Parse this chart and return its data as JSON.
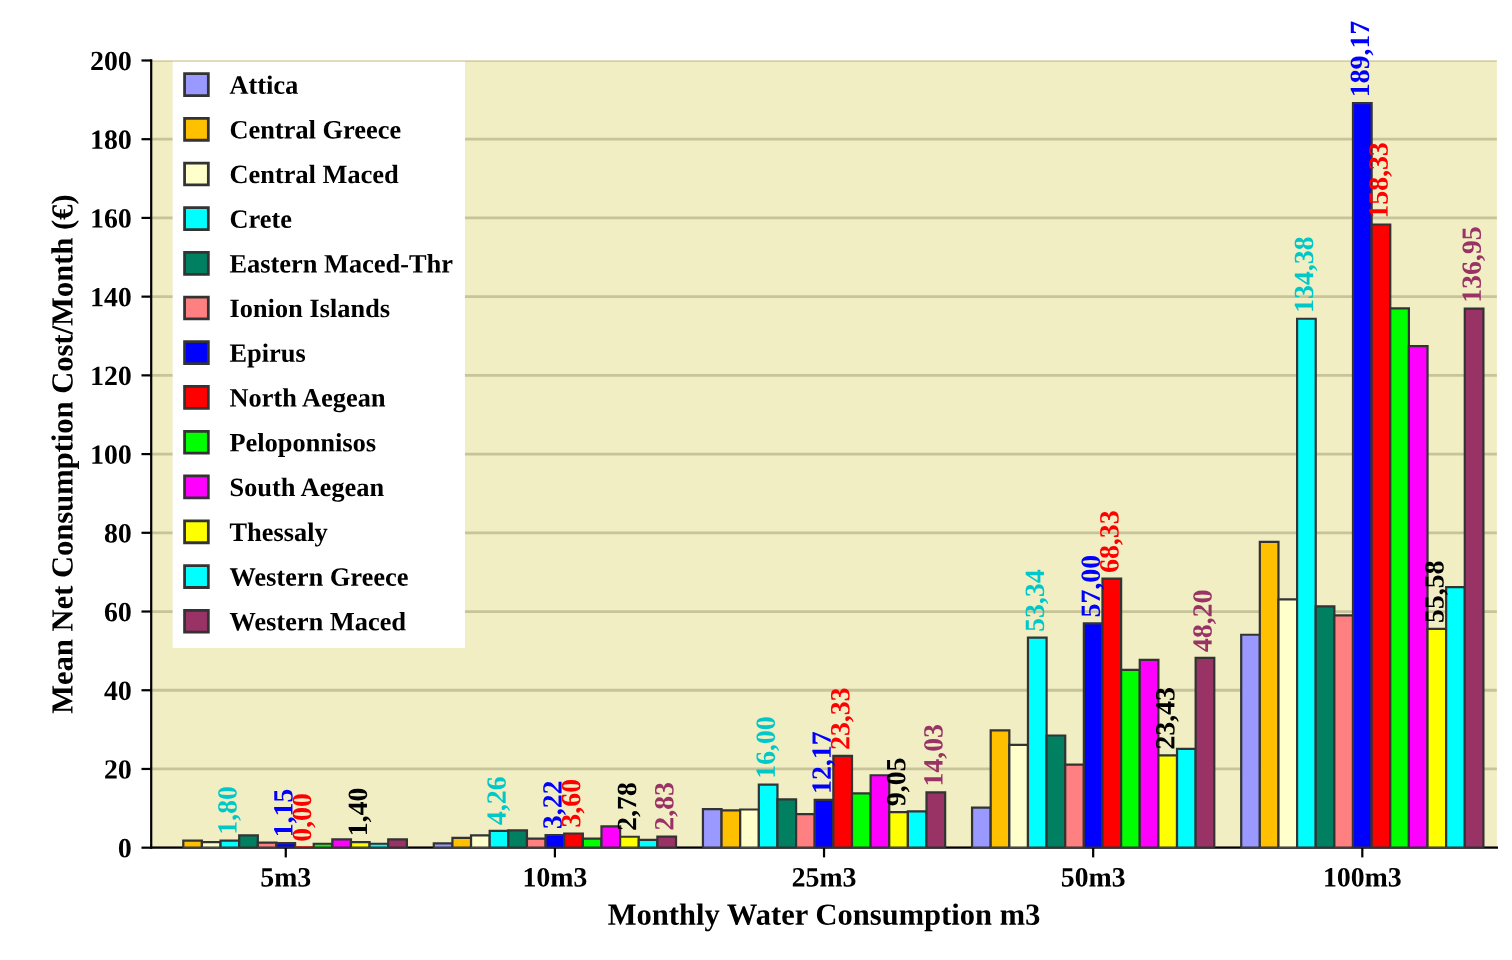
{
  "chart_data": {
    "type": "bar",
    "xlabel": "Monthly Water Consumption m3",
    "ylabel": "Mean Net Consumption Cost/Month (€)",
    "categories": [
      "5m3",
      "10m3",
      "25m3",
      "50m3",
      "100m3"
    ],
    "ylim": [
      0,
      200
    ],
    "yticks": [
      0,
      20,
      40,
      60,
      80,
      100,
      120,
      140,
      160,
      180,
      200
    ],
    "grid": "y",
    "legend": "top left",
    "series": [
      {
        "name": "Attica",
        "color": "#9999ff",
        "values": [
          null,
          1.1,
          9.8,
          10.2,
          54.1
        ]
      },
      {
        "name": "Central Greece",
        "color": "#ffc000",
        "values": [
          1.8,
          2.5,
          9.5,
          29.8,
          77.7
        ]
      },
      {
        "name": "Central Maced",
        "color": "#ffffcc",
        "values": [
          1.4,
          3.1,
          9.7,
          26.1,
          63.1
        ]
      },
      {
        "name": "Crete",
        "color": "#00ffff",
        "values": [
          1.8,
          4.26,
          16.0,
          53.34,
          134.38
        ],
        "value_labels": [
          "1,80",
          "4,26",
          "16,00",
          "53,34",
          "134,38"
        ]
      },
      {
        "name": "Eastern Maced-Thr",
        "color": "#008060",
        "values": [
          3.1,
          4.4,
          12.3,
          28.5,
          61.3
        ]
      },
      {
        "name": "Ionion Islands",
        "color": "#ff8080",
        "values": [
          1.3,
          2.3,
          8.5,
          21.1,
          59.0
        ]
      },
      {
        "name": "Epirus",
        "color": "#0000ff",
        "values": [
          1.15,
          3.22,
          12.17,
          57.0,
          189.17
        ],
        "value_labels": [
          "1,15",
          "3,22",
          "12,17",
          "57,00",
          "189,17"
        ]
      },
      {
        "name": "North Aegean",
        "color": "#ff0000",
        "values": [
          0.0,
          3.6,
          23.33,
          68.33,
          158.33
        ],
        "value_labels": [
          "0,00",
          "3,60",
          "23,33",
          "68,33",
          "158,33"
        ]
      },
      {
        "name": "Peloponnisos",
        "color": "#00ff00",
        "values": [
          1.0,
          2.3,
          13.8,
          45.2,
          137.0
        ]
      },
      {
        "name": "South Aegean",
        "color": "#ff00ff",
        "values": [
          2.1,
          5.4,
          18.4,
          47.7,
          127.4
        ]
      },
      {
        "name": "Thessaly",
        "color": "#ffff00",
        "values": [
          1.4,
          2.78,
          9.05,
          23.43,
          55.58
        ],
        "value_labels": [
          "1,40",
          "2,78",
          "9,05",
          "23,43",
          "55,58"
        ]
      },
      {
        "name": "Western Greece",
        "color": "#00ffff",
        "values": [
          1.0,
          2.0,
          9.2,
          25.1,
          66.2
        ]
      },
      {
        "name": "Western Maced",
        "color": "#993366",
        "values": [
          2.1,
          2.83,
          14.03,
          48.2,
          136.95
        ],
        "value_labels": [
          null,
          "2,83",
          "14,03",
          "48,20",
          "136,95"
        ]
      }
    ]
  }
}
